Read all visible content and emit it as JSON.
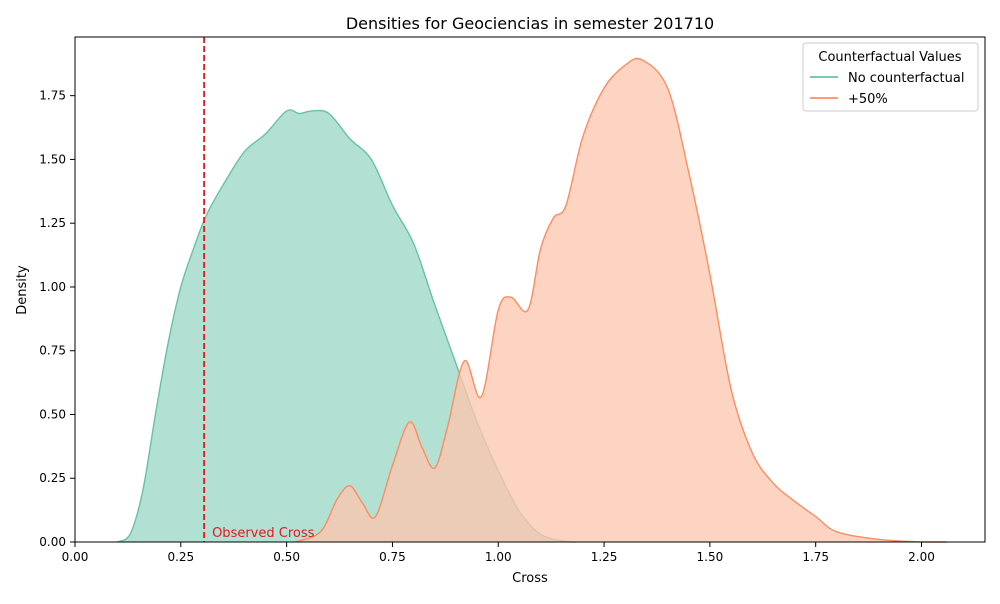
{
  "chart_data": {
    "type": "area",
    "title": "Densities for Geociencias in semester 201710",
    "xlabel": "Cross",
    "ylabel": "Density",
    "xlim": [
      0.0,
      2.15
    ],
    "ylim": [
      0.0,
      1.98
    ],
    "xticks": [
      "0.00",
      "0.25",
      "0.50",
      "0.75",
      "1.00",
      "1.25",
      "1.50",
      "1.75",
      "2.00"
    ],
    "yticks": [
      "0.00",
      "0.25",
      "0.50",
      "0.75",
      "1.00",
      "1.25",
      "1.50",
      "1.75"
    ],
    "grid": false,
    "legend": {
      "title": "Counterfactual Values",
      "placement": "top-right"
    },
    "series": [
      {
        "name": "No counterfactual",
        "color": "#66c2a5",
        "fill": "#b2e0d2",
        "x": [
          0.1,
          0.13,
          0.16,
          0.19,
          0.22,
          0.25,
          0.28,
          0.31,
          0.35,
          0.4,
          0.45,
          0.5,
          0.53,
          0.56,
          0.6,
          0.65,
          0.7,
          0.75,
          0.8,
          0.85,
          0.9,
          0.95,
          1.0,
          1.05,
          1.1,
          1.15,
          1.18
        ],
        "y": [
          0.0,
          0.03,
          0.2,
          0.5,
          0.78,
          1.0,
          1.15,
          1.28,
          1.4,
          1.53,
          1.6,
          1.69,
          1.68,
          1.69,
          1.68,
          1.58,
          1.5,
          1.32,
          1.17,
          0.93,
          0.7,
          0.47,
          0.28,
          0.12,
          0.03,
          0.005,
          0.0
        ]
      },
      {
        "name": "+50%",
        "color": "#fc8d62",
        "fill": "#fdc6af",
        "x": [
          0.52,
          0.58,
          0.62,
          0.65,
          0.68,
          0.71,
          0.75,
          0.79,
          0.82,
          0.85,
          0.88,
          0.92,
          0.96,
          1.0,
          1.03,
          1.07,
          1.1,
          1.13,
          1.16,
          1.2,
          1.25,
          1.3,
          1.34,
          1.4,
          1.45,
          1.5,
          1.55,
          1.6,
          1.65,
          1.7,
          1.75,
          1.8,
          1.9,
          2.0,
          2.06
        ],
        "y": [
          0.0,
          0.04,
          0.17,
          0.22,
          0.15,
          0.1,
          0.3,
          0.47,
          0.37,
          0.29,
          0.45,
          0.71,
          0.57,
          0.91,
          0.96,
          0.91,
          1.15,
          1.27,
          1.32,
          1.59,
          1.78,
          1.87,
          1.89,
          1.78,
          1.45,
          1.05,
          0.6,
          0.35,
          0.23,
          0.16,
          0.1,
          0.04,
          0.01,
          0.0,
          0.0
        ]
      }
    ],
    "annotations": [
      {
        "text": "Observed Cross",
        "x": 0.305,
        "line_style": "dashed",
        "color": "#e31a1c"
      }
    ]
  }
}
